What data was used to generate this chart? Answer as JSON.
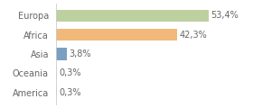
{
  "categories": [
    "Europa",
    "Africa",
    "Asia",
    "Oceania",
    "America"
  ],
  "values": [
    53.4,
    42.3,
    3.8,
    0.3,
    0.3
  ],
  "bar_colors": [
    "#bdd0a0",
    "#f0b97a",
    "#7a9fc2",
    "#dddddd",
    "#dddddd"
  ],
  "labels": [
    "53,4%",
    "42,3%",
    "3,8%",
    "0,3%",
    "0,3%"
  ],
  "xlim": [
    0,
    68
  ],
  "background_color": "#ffffff",
  "label_fontsize": 7.0,
  "tick_fontsize": 7.0,
  "bar_height": 0.62
}
